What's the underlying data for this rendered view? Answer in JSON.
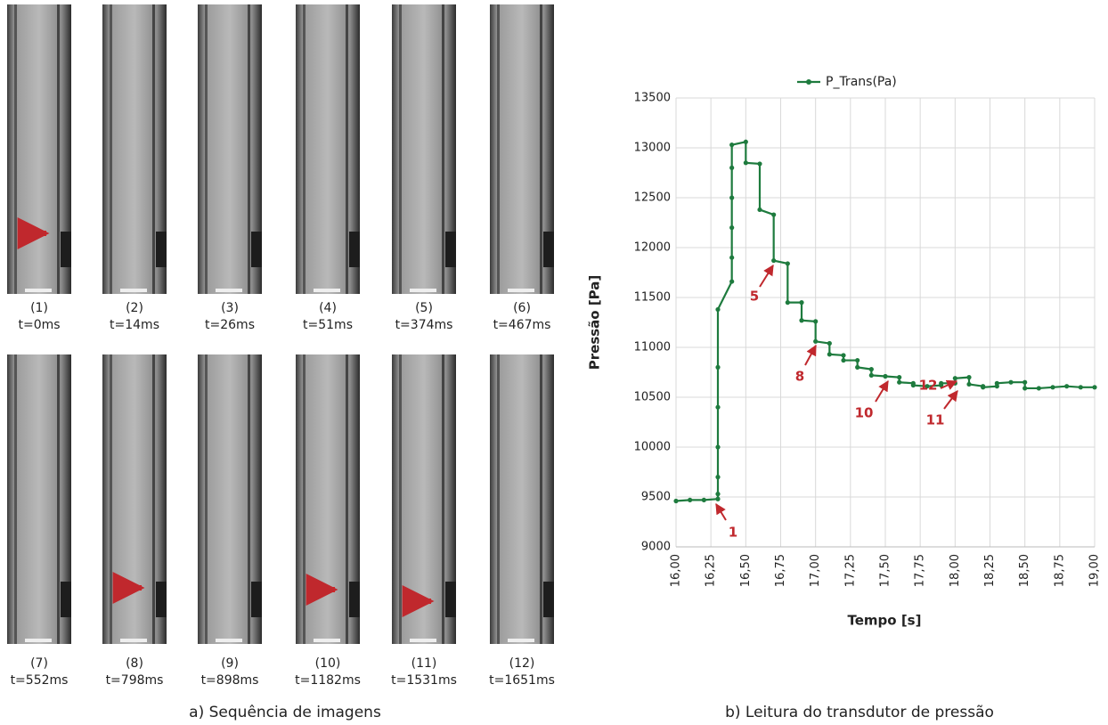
{
  "figure_a": {
    "frames": [
      {
        "label": "(1)",
        "time": "t=0ms"
      },
      {
        "label": "(2)",
        "time": "t=14ms"
      },
      {
        "label": "(3)",
        "time": "t=26ms"
      },
      {
        "label": "(4)",
        "time": "t=51ms"
      },
      {
        "label": "(5)",
        "time": "t=374ms"
      },
      {
        "label": "(6)",
        "time": "t=467ms"
      },
      {
        "label": "(7)",
        "time": "t=552ms"
      },
      {
        "label": "(8)",
        "time": "t=798ms"
      },
      {
        "label": "(9)",
        "time": "t=898ms"
      },
      {
        "label": "(10)",
        "time": "t=1182ms"
      },
      {
        "label": "(11)",
        "time": "t=1531ms"
      },
      {
        "label": "(12)",
        "time": "t=1651ms"
      }
    ],
    "caption": "a) Sequência de imagens"
  },
  "caption_b": "b) Leitura do transdutor de pressão",
  "chart_data": {
    "type": "line",
    "x_label": "Tempo [s]",
    "y_label": "Pressão [Pa]",
    "x": [
      16.0,
      16.1,
      16.2,
      16.3,
      16.3,
      16.3,
      16.3,
      16.3,
      16.3,
      16.3,
      16.4,
      16.4,
      16.4,
      16.4,
      16.4,
      16.4,
      16.5,
      16.5,
      16.6,
      16.6,
      16.7,
      16.7,
      16.8,
      16.8,
      16.9,
      16.9,
      17.0,
      17.0,
      17.1,
      17.1,
      17.2,
      17.2,
      17.3,
      17.3,
      17.4,
      17.4,
      17.5,
      17.6,
      17.6,
      17.7,
      17.7,
      17.8,
      17.9,
      17.9,
      18.0,
      18.0,
      18.1,
      18.1,
      18.2,
      18.2,
      18.3,
      18.3,
      18.4,
      18.5,
      18.5,
      18.6,
      18.7,
      18.8,
      18.9,
      19.0
    ],
    "series": [
      {
        "name": "P_Trans(Pa)",
        "color": "#1e7b3e",
        "values": [
          9460,
          9470,
          9470,
          9480,
          9530,
          9700,
          10000,
          10400,
          10800,
          11380,
          11660,
          11900,
          12200,
          12500,
          12800,
          13030,
          13060,
          12850,
          12840,
          12380,
          12330,
          11870,
          11840,
          11450,
          11450,
          11270,
          11260,
          11060,
          11040,
          10930,
          10920,
          10870,
          10870,
          10800,
          10780,
          10720,
          10710,
          10700,
          10650,
          10640,
          10620,
          10610,
          10620,
          10640,
          10640,
          10690,
          10700,
          10630,
          10610,
          10600,
          10610,
          10640,
          10650,
          10650,
          10590,
          10590,
          10600,
          10610,
          10600,
          10600
        ]
      }
    ],
    "xlim": [
      16.0,
      19.0
    ],
    "xticks": [
      {
        "value": 16.0,
        "label": "16,00"
      },
      {
        "value": 16.25,
        "label": "16,25"
      },
      {
        "value": 16.5,
        "label": "16,50"
      },
      {
        "value": 16.75,
        "label": "16,75"
      },
      {
        "value": 17.0,
        "label": "17,00"
      },
      {
        "value": 17.25,
        "label": "17,25"
      },
      {
        "value": 17.5,
        "label": "17,50"
      },
      {
        "value": 17.75,
        "label": "17,75"
      },
      {
        "value": 18.0,
        "label": "18,00"
      },
      {
        "value": 18.25,
        "label": "18,25"
      },
      {
        "value": 18.5,
        "label": "18,50"
      },
      {
        "value": 18.75,
        "label": "18,75"
      },
      {
        "value": 19.0,
        "label": "19,00"
      }
    ],
    "ylim": [
      9000,
      13500
    ],
    "yticks": [
      9000,
      9500,
      10000,
      10500,
      11000,
      11500,
      12000,
      12500,
      13000,
      13500
    ],
    "grid": true,
    "legend": "top",
    "annotations": [
      "1",
      "5",
      "8",
      "10",
      "11",
      "12"
    ]
  }
}
